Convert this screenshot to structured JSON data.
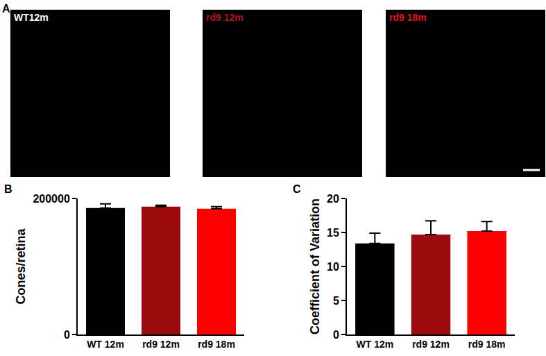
{
  "images": {
    "annotations": [
      "A"
    ],
    "labels": [
      "WT12m",
      "rd9 12m",
      "rd9 18m"
    ],
    "label_colors": [
      "#ffffff",
      "#b3141b",
      "#e3141b"
    ]
  },
  "chart_data": [
    {
      "type": "bar",
      "annotations": [
        "B"
      ],
      "y_label": "Cones/retina",
      "categories": [
        "WT 12m",
        "rd9 12m",
        "rd9 18m"
      ],
      "values": [
        186000,
        188000,
        185000
      ],
      "errors": [
        6000,
        2000,
        3000
      ],
      "colors": [
        "#000000",
        "#9b0a0f",
        "#ff0000"
      ],
      "ylim": [
        0,
        200000
      ],
      "yticks": [
        0,
        200000
      ],
      "grid": false
    },
    {
      "type": "bar",
      "annotations": [
        "C"
      ],
      "y_label": "Coefficient of Variation",
      "categories": [
        "WT 12m",
        "rd9 12m",
        "rd9 18m"
      ],
      "values": [
        13.4,
        14.7,
        15.2
      ],
      "errors": [
        1.5,
        2.0,
        1.4
      ],
      "colors": [
        "#000000",
        "#9b0a0f",
        "#ff0000"
      ],
      "ylim": [
        0,
        20
      ],
      "yticks": [
        0,
        5,
        10,
        15,
        20
      ],
      "grid": false
    }
  ]
}
